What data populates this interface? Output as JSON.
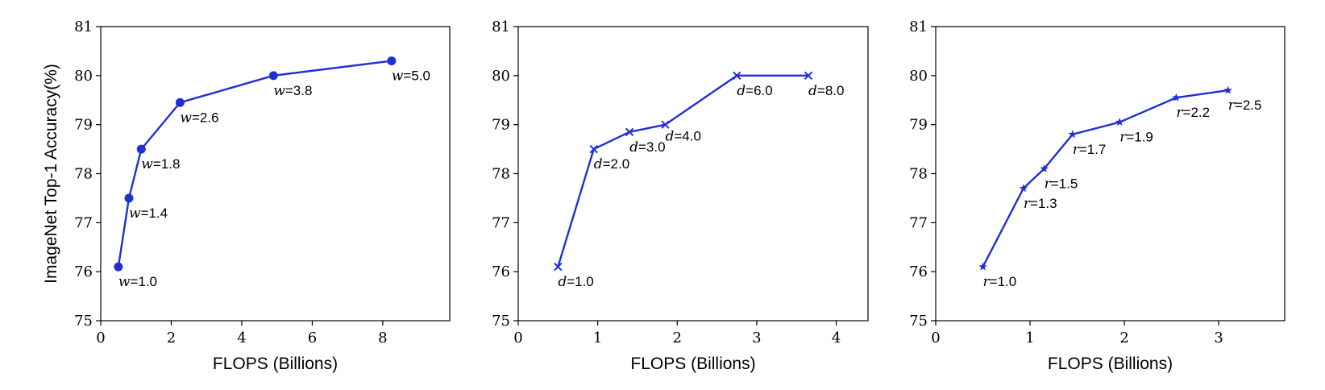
{
  "colors": {
    "series": "#1f2fd6"
  },
  "chart_data": [
    {
      "type": "line",
      "marker": "circle",
      "xlabel": "FLOPS (Billions)",
      "ylabel": "ImageNet Top-1 Accuracy(%)",
      "xlim": [
        0,
        9.9
      ],
      "ylim": [
        75,
        81
      ],
      "xticks": [
        0,
        2,
        4,
        6,
        8
      ],
      "yticks": [
        75,
        76,
        77,
        78,
        79,
        80,
        81
      ],
      "grid": false,
      "series": [
        {
          "x": [
            0.5,
            0.8,
            1.15,
            2.25,
            4.9,
            8.25
          ],
          "y": [
            76.1,
            77.5,
            78.5,
            79.45,
            80.0,
            80.3
          ],
          "labels": [
            {
              "var": "w",
              "text": "=1.0"
            },
            {
              "var": "w",
              "text": "=1.4"
            },
            {
              "var": "w",
              "text": "=1.8"
            },
            {
              "var": "w",
              "text": "=2.6"
            },
            {
              "var": "w",
              "text": "=3.8"
            },
            {
              "var": "w",
              "text": "=5.0"
            }
          ]
        }
      ]
    },
    {
      "type": "line",
      "marker": "x",
      "xlabel": "FLOPS (Billions)",
      "ylabel": "",
      "xlim": [
        0,
        4.4
      ],
      "ylim": [
        75,
        81
      ],
      "xticks": [
        0,
        1,
        2,
        3,
        4
      ],
      "yticks": [
        75,
        76,
        77,
        78,
        79,
        80,
        81
      ],
      "grid": false,
      "series": [
        {
          "x": [
            0.5,
            0.95,
            1.4,
            1.85,
            2.75,
            3.65
          ],
          "y": [
            76.1,
            78.5,
            78.85,
            79.0,
            80.0,
            80.0
          ],
          "labels": [
            {
              "var": "d",
              "text": "=1.0"
            },
            {
              "var": "d",
              "text": "=2.0"
            },
            {
              "var": "d",
              "text": "=3.0"
            },
            {
              "var": "d",
              "text": "=4.0"
            },
            {
              "var": "d",
              "text": "=6.0"
            },
            {
              "var": "d",
              "text": "=8.0"
            }
          ]
        }
      ]
    },
    {
      "type": "line",
      "marker": "star",
      "xlabel": "FLOPS (Billions)",
      "ylabel": "",
      "xlim": [
        0,
        3.7
      ],
      "ylim": [
        75,
        81
      ],
      "xticks": [
        0,
        1,
        2,
        3
      ],
      "yticks": [
        75,
        76,
        77,
        78,
        79,
        80,
        81
      ],
      "grid": false,
      "series": [
        {
          "x": [
            0.5,
            0.93,
            1.15,
            1.45,
            1.95,
            2.55,
            3.1
          ],
          "y": [
            76.1,
            77.7,
            78.1,
            78.8,
            79.05,
            79.55,
            79.7
          ],
          "labels": [
            {
              "var": "r",
              "text": "=1.0"
            },
            {
              "var": "r",
              "text": "=1.3"
            },
            {
              "var": "r",
              "text": "=1.5"
            },
            {
              "var": "r",
              "text": "=1.7"
            },
            {
              "var": "r",
              "text": "=1.9"
            },
            {
              "var": "r",
              "text": "=2.2"
            },
            {
              "var": "r",
              "text": "=2.5"
            }
          ]
        }
      ]
    }
  ]
}
